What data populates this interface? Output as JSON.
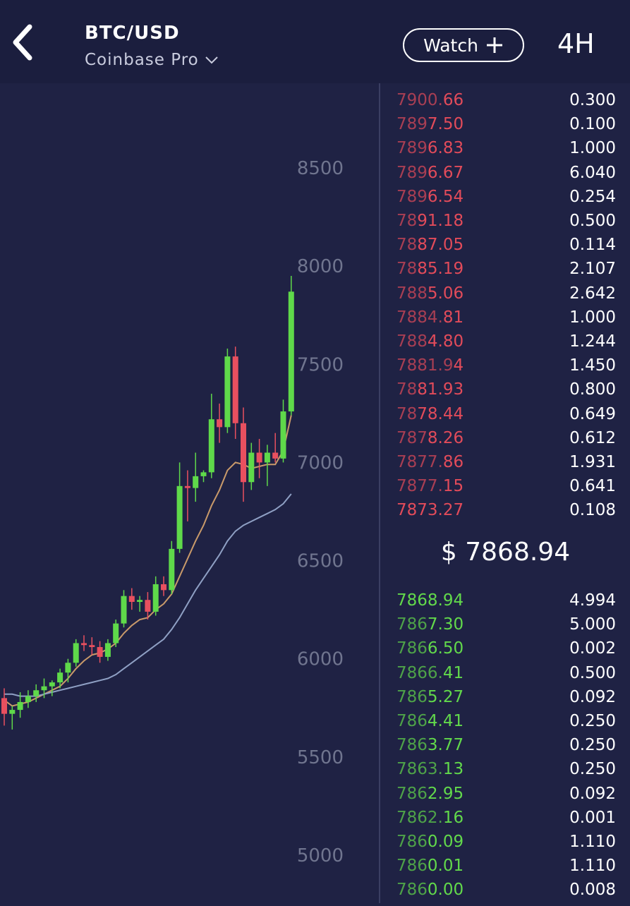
{
  "header": {
    "pair": "BTC/USD",
    "exchange": "Coinbase Pro",
    "watch_label": "Watch",
    "timeframe": "4H"
  },
  "chart_data": {
    "type": "candlestick",
    "y_ticks": [
      8500,
      8000,
      7500,
      7000,
      6500,
      6000,
      5500,
      5000
    ],
    "ylim": [
      4850,
      8800
    ],
    "candles": [
      {
        "o": 5800,
        "h": 5850,
        "l": 5660,
        "c": 5720
      },
      {
        "o": 5720,
        "h": 5760,
        "l": 5640,
        "c": 5740
      },
      {
        "o": 5740,
        "h": 5830,
        "l": 5700,
        "c": 5780
      },
      {
        "o": 5780,
        "h": 5840,
        "l": 5750,
        "c": 5810
      },
      {
        "o": 5810,
        "h": 5870,
        "l": 5780,
        "c": 5840
      },
      {
        "o": 5840,
        "h": 5900,
        "l": 5800,
        "c": 5860
      },
      {
        "o": 5860,
        "h": 5890,
        "l": 5810,
        "c": 5880
      },
      {
        "o": 5880,
        "h": 5950,
        "l": 5850,
        "c": 5930
      },
      {
        "o": 5930,
        "h": 6000,
        "l": 5880,
        "c": 5980
      },
      {
        "o": 5980,
        "h": 6100,
        "l": 5960,
        "c": 6080
      },
      {
        "o": 6080,
        "h": 6120,
        "l": 6040,
        "c": 6070
      },
      {
        "o": 6070,
        "h": 6110,
        "l": 6020,
        "c": 6060
      },
      {
        "o": 6060,
        "h": 6090,
        "l": 5980,
        "c": 6010
      },
      {
        "o": 6010,
        "h": 6100,
        "l": 5990,
        "c": 6080
      },
      {
        "o": 6080,
        "h": 6200,
        "l": 6060,
        "c": 6180
      },
      {
        "o": 6180,
        "h": 6350,
        "l": 6160,
        "c": 6320
      },
      {
        "o": 6320,
        "h": 6360,
        "l": 6250,
        "c": 6290
      },
      {
        "o": 6290,
        "h": 6320,
        "l": 6240,
        "c": 6300
      },
      {
        "o": 6300,
        "h": 6340,
        "l": 6200,
        "c": 6240
      },
      {
        "o": 6240,
        "h": 6420,
        "l": 6220,
        "c": 6380
      },
      {
        "o": 6380,
        "h": 6420,
        "l": 6320,
        "c": 6350
      },
      {
        "o": 6350,
        "h": 6600,
        "l": 6330,
        "c": 6560
      },
      {
        "o": 6560,
        "h": 7000,
        "l": 6540,
        "c": 6880
      },
      {
        "o": 6880,
        "h": 6960,
        "l": 6700,
        "c": 6870
      },
      {
        "o": 6870,
        "h": 7050,
        "l": 6800,
        "c": 6930
      },
      {
        "o": 6930,
        "h": 6960,
        "l": 6900,
        "c": 6950
      },
      {
        "o": 6950,
        "h": 7350,
        "l": 6920,
        "c": 7220
      },
      {
        "o": 7220,
        "h": 7300,
        "l": 7100,
        "c": 7180
      },
      {
        "o": 7180,
        "h": 7580,
        "l": 7150,
        "c": 7540
      },
      {
        "o": 7540,
        "h": 7590,
        "l": 7120,
        "c": 7200
      },
      {
        "o": 7200,
        "h": 7280,
        "l": 6800,
        "c": 6900
      },
      {
        "o": 6900,
        "h": 7100,
        "l": 6860,
        "c": 7050
      },
      {
        "o": 7050,
        "h": 7120,
        "l": 6920,
        "c": 7000
      },
      {
        "o": 7000,
        "h": 7090,
        "l": 6880,
        "c": 7050
      },
      {
        "o": 7050,
        "h": 7150,
        "l": 7000,
        "c": 7020
      },
      {
        "o": 7020,
        "h": 7320,
        "l": 7000,
        "c": 7260
      },
      {
        "o": 7260,
        "h": 7950,
        "l": 7240,
        "c": 7870
      }
    ],
    "series": [
      {
        "values": [
          5790,
          5760,
          5770,
          5780,
          5800,
          5820,
          5840,
          5860,
          5900,
          5950,
          5990,
          6020,
          6030,
          6050,
          6080,
          6130,
          6170,
          6200,
          6210,
          6250,
          6280,
          6330,
          6420,
          6510,
          6600,
          6680,
          6780,
          6860,
          6960,
          7000,
          6990,
          6970,
          6980,
          6990,
          6990,
          7060,
          7240
        ]
      },
      {
        "values": [
          5820,
          5820,
          5810,
          5810,
          5810,
          5820,
          5830,
          5840,
          5850,
          5860,
          5870,
          5880,
          5890,
          5900,
          5920,
          5950,
          5980,
          6010,
          6040,
          6070,
          6100,
          6150,
          6210,
          6280,
          6350,
          6410,
          6470,
          6530,
          6600,
          6650,
          6680,
          6700,
          6720,
          6740,
          6760,
          6790,
          6840
        ]
      }
    ]
  },
  "orderbook": {
    "asks": [
      {
        "hl": "7900.",
        "rest": "66",
        "size": "0.300"
      },
      {
        "hl": "789",
        "rest": "7.50",
        "size": "0.100"
      },
      {
        "hl": "789",
        "rest": "6.83",
        "size": "1.000"
      },
      {
        "hl": "789",
        "rest": "6.67",
        "size": "6.040"
      },
      {
        "hl": "789",
        "rest": "6.54",
        "size": "0.254"
      },
      {
        "hl": "78",
        "rest": "91.18",
        "size": "0.500"
      },
      {
        "hl": "78",
        "rest": "87.05",
        "size": "0.114"
      },
      {
        "hl": "78",
        "rest": "85.19",
        "size": "2.107"
      },
      {
        "hl": "788",
        "rest": "5.06",
        "size": "2.642"
      },
      {
        "hl": "7884.",
        "rest": "81",
        "size": "1.000"
      },
      {
        "hl": "788",
        "rest": "4.80",
        "size": "1.244"
      },
      {
        "hl": "7881.9",
        "rest": "4",
        "size": "1.450"
      },
      {
        "hl": "78",
        "rest": "81.93",
        "size": "0.800"
      },
      {
        "hl": "78",
        "rest": "78.44",
        "size": "0.649"
      },
      {
        "hl": "787",
        "rest": "8.26",
        "size": "0.612"
      },
      {
        "hl": "7877.",
        "rest": "86",
        "size": "1.931"
      },
      {
        "hl": "7877.",
        "rest": "15",
        "size": "0.641"
      },
      {
        "hl": "",
        "rest": "7873.27",
        "size": "0.108"
      }
    ],
    "mid_price": "$ 7868.94",
    "bids": [
      {
        "hl": "",
        "rest": "7868.94",
        "size": "4.994"
      },
      {
        "hl": "786",
        "rest": "7.30",
        "size": "5.000"
      },
      {
        "hl": "786",
        "rest": "6.50",
        "size": "0.002"
      },
      {
        "hl": "7866.",
        "rest": "41",
        "size": "0.500"
      },
      {
        "hl": "786",
        "rest": "5.27",
        "size": "0.092"
      },
      {
        "hl": "786",
        "rest": "4.41",
        "size": "0.250"
      },
      {
        "hl": "786",
        "rest": "3.77",
        "size": "0.250"
      },
      {
        "hl": "7863.",
        "rest": "13",
        "size": "0.250"
      },
      {
        "hl": "786",
        "rest": "2.95",
        "size": "0.092"
      },
      {
        "hl": "7862.",
        "rest": "16",
        "size": "0.001"
      },
      {
        "hl": "786",
        "rest": "0.09",
        "size": "1.110"
      },
      {
        "hl": "786",
        "rest": "0.01",
        "size": "1.110"
      },
      {
        "hl": "786",
        "rest": "0.00",
        "size": "0.008"
      }
    ]
  },
  "colors": {
    "up": "#5fd94a",
    "down": "#e8505f",
    "ma_fast": "#c99a6a",
    "ma_slow": "#8fa0c4",
    "axis_text": "#70758f"
  }
}
